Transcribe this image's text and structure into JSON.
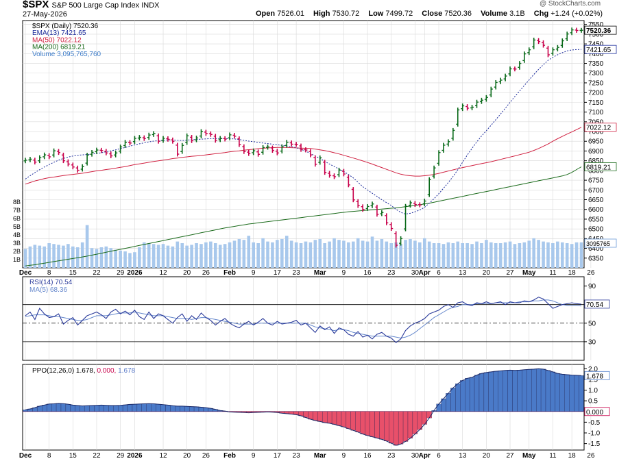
{
  "header": {
    "symbol": "$SPX",
    "name": "S&P 500 Large Cap Index",
    "exchange": "INDX",
    "date": "27-May-2026",
    "open_label": "Open",
    "open": "7526.01",
    "high_label": "High",
    "high": "7530.72",
    "low_label": "Low",
    "low": "7499.72",
    "close_label": "Close",
    "close": "7520.36",
    "volume_label": "Volume",
    "volume": "3.1B",
    "chg_label": "Chg",
    "chg": "+1.24 (+0.02%)",
    "watermark": "@ StockCharts.com"
  },
  "colors": {
    "up": "#0a6a1a",
    "down": "#c8004a",
    "ema13": "#1a2a9a",
    "ma50": "#d02040",
    "ma200": "#1a6a1a",
    "volume": "#a8c8ec",
    "rsi": "#2a3a9a",
    "rsi_ma": "#6688cc",
    "ppo_pos": "#4a7ac8",
    "ppo_neg": "#e8506a",
    "grid": "#d8d8d8"
  },
  "chart_data": [
    {
      "type": "ohlc",
      "panel": "price",
      "legend": [
        "$SPX (Daily) 7520.36",
        "EMA(13) 7421.65",
        "MA(50) 7022.12",
        "MA(200) 6819.21",
        "Volume 3,095,765,760"
      ],
      "yticks": [
        6350,
        6400,
        6450,
        6500,
        6550,
        6600,
        6650,
        6700,
        6750,
        6800,
        6850,
        6900,
        6950,
        7000,
        7050,
        7100,
        7150,
        7200,
        7250,
        7300,
        7350,
        7400,
        7450,
        7500,
        7550
      ],
      "ylim": [
        6300,
        7570
      ],
      "right_labels": [
        {
          "text": "7520.36",
          "value": 7520.36,
          "series": "price"
        },
        {
          "text": "7421.65",
          "value": 7421.65,
          "series": "ema13"
        },
        {
          "text": "7022.12",
          "value": 7022.12,
          "series": "ma50"
        },
        {
          "text": "6819.21",
          "value": 6819.21,
          "series": "ma200"
        }
      ],
      "vol_ticks": [
        "1B",
        "2B",
        "3B",
        "4B",
        "5B",
        "6B",
        "7B",
        "8B"
      ],
      "vol_right_label": "3095765",
      "closes": [
        6853,
        6858,
        6843,
        6866,
        6880,
        6870,
        6901,
        6892,
        6850,
        6833,
        6818,
        6801,
        6820,
        6879,
        6893,
        6905,
        6902,
        6890,
        6875,
        6890,
        6921,
        6945,
        6941,
        6965,
        6970,
        6964,
        6982,
        6990,
        6950,
        6965,
        6960,
        6950,
        6884,
        6929,
        6978,
        6953,
        6967,
        7000,
        6990,
        6985,
        6955,
        6965,
        6961,
        6983,
        6976,
        6933,
        6897,
        6887,
        6901,
        6883,
        6918,
        6921,
        6903,
        6890,
        6922,
        6945,
        6935,
        6934,
        6908,
        6905,
        6880,
        6832,
        6865,
        6790,
        6775,
        6768,
        6802,
        6782,
        6726,
        6649,
        6620,
        6600,
        6615,
        6628,
        6575,
        6584,
        6531,
        6502,
        6416,
        6450,
        6616,
        6634,
        6625,
        6623,
        6643,
        6753,
        6813,
        6892,
        6930,
        6948,
        7006,
        7111,
        7132,
        7120,
        7125,
        7151,
        7161,
        7175,
        7218,
        7252,
        7264,
        7285,
        7322,
        7321,
        7350,
        7399,
        7420,
        7470,
        7462,
        7443,
        7394,
        7420,
        7432,
        7466,
        7501,
        7522,
        7519,
        7520
      ],
      "ema13": [
        6756,
        6773,
        6789,
        6804,
        6818,
        6830,
        6842,
        6853,
        6862,
        6869,
        6874,
        6878,
        6880,
        6882,
        6884,
        6887,
        6891,
        6896,
        6901,
        6906,
        6912,
        6918,
        6925,
        6931,
        6937,
        6942,
        6947,
        6951,
        6953,
        6955,
        6957,
        6957,
        6955,
        6954,
        6956,
        6958,
        6959,
        6961,
        6962,
        6964,
        6964,
        6964,
        6963,
        6963,
        6962,
        6959,
        6955,
        6951,
        6948,
        6944,
        6941,
        6938,
        6935,
        6932,
        6929,
        6926,
        6922,
        6917,
        6909,
        6899,
        6887,
        6874,
        6862,
        6847,
        6833,
        6820,
        6808,
        6795,
        6779,
        6762,
        6740,
        6717,
        6700,
        6683,
        6667,
        6650,
        6635,
        6620,
        6600,
        6585,
        6576,
        6580,
        6588,
        6597,
        6611,
        6632,
        6655,
        6681,
        6709,
        6738,
        6769,
        6804,
        6842,
        6879,
        6914,
        6947,
        6977,
        7004,
        7032,
        7061,
        7090,
        7120,
        7150,
        7180,
        7208,
        7237,
        7265,
        7293,
        7319,
        7343,
        7366,
        7381,
        7394,
        7405,
        7414,
        7419,
        7421,
        7422
      ],
      "ma50": [
        6730,
        6738,
        6746,
        6752,
        6758,
        6763,
        6766,
        6770,
        6774,
        6777,
        6780,
        6783,
        6786,
        6790,
        6794,
        6798,
        6801,
        6805,
        6808,
        6812,
        6816,
        6820,
        6825,
        6830,
        6834,
        6838,
        6842,
        6846,
        6850,
        6853,
        6857,
        6861,
        6864,
        6867,
        6870,
        6873,
        6875,
        6877,
        6880,
        6883,
        6886,
        6889,
        6892,
        6896,
        6899,
        6901,
        6904,
        6907,
        6909,
        6912,
        6914,
        6916,
        6917,
        6918,
        6918,
        6918,
        6917,
        6916,
        6915,
        6914,
        6913,
        6910,
        6906,
        6902,
        6897,
        6891,
        6885,
        6878,
        6871,
        6864,
        6857,
        6849,
        6841,
        6833,
        6824,
        6815,
        6806,
        6797,
        6788,
        6781,
        6776,
        6773,
        6771,
        6771,
        6773,
        6776,
        6780,
        6785,
        6791,
        6797,
        6803,
        6809,
        6815,
        6820,
        6825,
        6830,
        6835,
        6840,
        6845,
        6851,
        6857,
        6863,
        6869,
        6875,
        6881,
        6887,
        6894,
        6903,
        6913,
        6924,
        6936,
        6950,
        6963,
        6975,
        6987,
        6998,
        7010,
        7022
      ],
      "ma200": [
        6310,
        6313,
        6316,
        6320,
        6324,
        6328,
        6332,
        6336,
        6340,
        6344,
        6348,
        6352,
        6356,
        6360,
        6365,
        6370,
        6375,
        6380,
        6385,
        6390,
        6395,
        6400,
        6405,
        6410,
        6415,
        6420,
        6425,
        6430,
        6435,
        6440,
        6445,
        6450,
        6455,
        6460,
        6465,
        6470,
        6475,
        6480,
        6485,
        6490,
        6495,
        6500,
        6505,
        6509,
        6513,
        6517,
        6521,
        6525,
        6528,
        6531,
        6534,
        6537,
        6540,
        6543,
        6546,
        6549,
        6552,
        6555,
        6558,
        6561,
        6564,
        6567,
        6570,
        6573,
        6576,
        6579,
        6582,
        6585,
        6588,
        6590,
        6592,
        6594,
        6596,
        6598,
        6600,
        6602,
        6604,
        6606,
        6608,
        6611,
        6614,
        6617,
        6620,
        6624,
        6628,
        6632,
        6637,
        6642,
        6647,
        6652,
        6657,
        6662,
        6667,
        6672,
        6677,
        6682,
        6687,
        6692,
        6697,
        6702,
        6707,
        6712,
        6717,
        6722,
        6727,
        6732,
        6737,
        6742,
        6747,
        6752,
        6757,
        6762,
        6767,
        6772,
        6779,
        6790,
        6805,
        6819
      ],
      "volume_billions": [
        2.3,
        2.6,
        2.8,
        2.7,
        2.6,
        3.0,
        2.9,
        2.8,
        2.7,
        2.9,
        2.6,
        2.5,
        3.1,
        5.2,
        2.4,
        2.3,
        2.5,
        2.6,
        2.4,
        2.2,
        2.1,
        2.0,
        1.8,
        1.9,
        2.5,
        3.1,
        3.0,
        2.9,
        2.8,
        2.9,
        2.7,
        2.6,
        3.2,
        3.0,
        2.7,
        2.8,
        3.0,
        2.9,
        3.1,
        3.2,
        3.0,
        2.8,
        2.9,
        3.1,
        3.3,
        3.5,
        3.4,
        3.9,
        3.1,
        3.0,
        3.6,
        3.2,
        3.1,
        3.4,
        3.5,
        3.9,
        3.3,
        3.1,
        3.0,
        3.2,
        3.1,
        3.4,
        3.5,
        3.0,
        3.2,
        3.6,
        3.4,
        3.3,
        3.1,
        3.2,
        3.6,
        3.3,
        3.2,
        3.8,
        3.3,
        3.5,
        3.2,
        3.0,
        3.1,
        2.9,
        3.4,
        3.5,
        3.3,
        3.1,
        3.6,
        3.2,
        3.0,
        3.0,
        2.9,
        3.1,
        3.0,
        3.2,
        3.0,
        3.0,
        2.9,
        3.2,
        3.0,
        3.4,
        3.1,
        3.0,
        3.0,
        3.1,
        3.2,
        2.9,
        3.0,
        3.1,
        3.3,
        3.6,
        3.4,
        3.2,
        3.1,
        3.0,
        3.2,
        3.1,
        3.0,
        2.9,
        3.1,
        3.1
      ]
    },
    {
      "type": "line",
      "panel": "rsi",
      "legend": [
        "RSI(14) 70.54",
        "MA(5) 68.36"
      ],
      "yticks": [
        30,
        50,
        70,
        90
      ],
      "ylim": [
        10,
        100
      ],
      "bands": [
        30,
        70
      ],
      "midline": 50,
      "right_label": "70.54",
      "rsi": [
        58,
        62,
        54,
        66,
        60,
        56,
        57,
        60,
        49,
        53,
        56,
        48,
        53,
        58,
        60,
        62,
        59,
        55,
        62,
        65,
        60,
        63,
        59,
        64,
        57,
        54,
        62,
        55,
        60,
        58,
        54,
        50,
        56,
        60,
        52,
        58,
        54,
        61,
        56,
        53,
        48,
        52,
        55,
        50,
        47,
        45,
        49,
        52,
        48,
        51,
        55,
        50,
        48,
        52,
        49,
        50,
        51,
        53,
        48,
        50,
        45,
        40,
        47,
        43,
        46,
        39,
        45,
        43,
        38,
        36,
        41,
        35,
        37,
        33,
        38,
        40,
        36,
        34,
        29,
        33,
        42,
        47,
        50,
        52,
        55,
        60,
        62,
        64,
        68,
        70,
        67,
        72,
        73,
        70,
        69,
        72,
        71,
        73,
        71,
        72,
        73,
        70,
        73,
        72,
        72,
        74,
        73,
        75,
        78,
        76,
        71,
        66,
        68,
        70,
        71,
        72,
        71,
        70.5
      ],
      "rsi_ma": [
        57,
        58,
        59,
        59,
        59,
        58,
        57,
        57,
        56,
        55,
        54,
        53,
        53,
        54,
        56,
        58,
        58,
        58,
        59,
        60,
        61,
        61,
        61,
        62,
        61,
        60,
        59,
        58,
        58,
        58,
        57,
        56,
        55,
        55,
        55,
        54,
        55,
        56,
        56,
        55,
        54,
        53,
        52,
        51,
        50,
        49,
        49,
        49,
        49,
        50,
        50,
        50,
        50,
        50,
        50,
        50,
        50,
        50,
        50,
        50,
        48,
        46,
        45,
        44,
        43,
        42,
        43,
        43,
        42,
        40,
        39,
        38,
        37,
        36,
        36,
        36,
        36,
        36,
        35,
        34,
        35,
        37,
        40,
        44,
        48,
        52,
        56,
        59,
        62,
        65,
        67,
        68,
        70,
        70,
        70,
        71,
        71,
        71,
        71,
        72,
        72,
        72,
        72,
        72,
        73,
        73,
        73,
        74,
        74,
        75,
        75,
        74,
        72,
        70,
        69,
        69,
        69,
        68.4
      ]
    },
    {
      "type": "bar",
      "panel": "ppo",
      "legend": [
        "PPO(12,26,0) 1.678,",
        "0.000,",
        "1.678"
      ],
      "yticks": [
        -1.5,
        -1.0,
        -0.5,
        0.5,
        1.0,
        1.5,
        2.0
      ],
      "ylim": [
        -1.8,
        2.2
      ],
      "right_labels": [
        {
          "text": "1.678",
          "value": 1.678
        },
        {
          "text": "0.000",
          "value": 0.0
        }
      ],
      "values": [
        0.08,
        0.12,
        0.18,
        0.25,
        0.3,
        0.35,
        0.36,
        0.38,
        0.37,
        0.34,
        0.3,
        0.28,
        0.26,
        0.27,
        0.28,
        0.29,
        0.3,
        0.29,
        0.28,
        0.28,
        0.29,
        0.31,
        0.33,
        0.34,
        0.35,
        0.36,
        0.37,
        0.36,
        0.34,
        0.32,
        0.3,
        0.27,
        0.25,
        0.25,
        0.24,
        0.23,
        0.22,
        0.2,
        0.18,
        0.15,
        0.1,
        0.05,
        0.02,
        -0.02,
        -0.03,
        -0.04,
        -0.05,
        -0.06,
        -0.05,
        -0.04,
        -0.03,
        -0.02,
        -0.03,
        -0.05,
        -0.08,
        -0.1,
        -0.12,
        -0.15,
        -0.2,
        -0.28,
        -0.36,
        -0.42,
        -0.47,
        -0.52,
        -0.55,
        -0.6,
        -0.66,
        -0.72,
        -0.8,
        -0.88,
        -0.96,
        -1.05,
        -1.12,
        -1.18,
        -1.24,
        -1.3,
        -1.38,
        -1.48,
        -1.58,
        -1.52,
        -1.4,
        -1.25,
        -1.05,
        -0.85,
        -0.6,
        -0.3,
        0.05,
        0.35,
        0.6,
        0.85,
        1.1,
        1.3,
        1.45,
        1.55,
        1.6,
        1.7,
        1.78,
        1.82,
        1.85,
        1.88,
        1.9,
        1.92,
        1.93,
        1.92,
        1.93,
        1.95,
        1.97,
        1.98,
        2.0,
        1.98,
        1.92,
        1.85,
        1.78,
        1.74,
        1.72,
        1.7,
        1.69,
        1.678
      ]
    }
  ],
  "x_axis": {
    "labels": [
      {
        "text": "Dec",
        "i": 0,
        "bold": true
      },
      {
        "text": "8",
        "i": 5
      },
      {
        "text": "15",
        "i": 10
      },
      {
        "text": "22",
        "i": 15
      },
      {
        "text": "29",
        "i": 20
      },
      {
        "text": "2026",
        "i": 23,
        "bold": true
      },
      {
        "text": "12",
        "i": 29
      },
      {
        "text": "20",
        "i": 34
      },
      {
        "text": "26",
        "i": 38
      },
      {
        "text": "Feb",
        "i": 43,
        "bold": true
      },
      {
        "text": "9",
        "i": 48
      },
      {
        "text": "17",
        "i": 53
      },
      {
        "text": "23",
        "i": 57
      },
      {
        "text": "Mar",
        "i": 62,
        "bold": true
      },
      {
        "text": "9",
        "i": 67
      },
      {
        "text": "16",
        "i": 72
      },
      {
        "text": "23",
        "i": 77
      },
      {
        "text": "30",
        "i": 82
      },
      {
        "text": "Apr",
        "i": 84,
        "bold": true
      },
      {
        "text": "6",
        "i": 87
      },
      {
        "text": "13",
        "i": 92
      },
      {
        "text": "20",
        "i": 97
      },
      {
        "text": "27",
        "i": 102
      },
      {
        "text": "May",
        "i": 106,
        "bold": true
      },
      {
        "text": "11",
        "i": 111
      },
      {
        "text": "18",
        "i": 115
      },
      {
        "text": "26",
        "i": 119
      }
    ]
  }
}
